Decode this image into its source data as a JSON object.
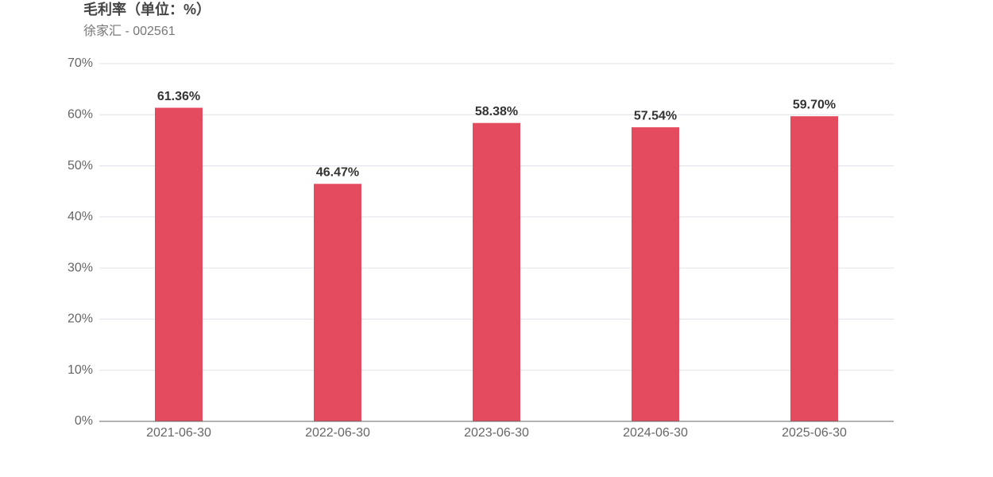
{
  "chart_data": {
    "type": "bar",
    "title": "毛利率（单位：%）",
    "subtitle": "徐家汇 - 002561",
    "categories": [
      "2021-06-30",
      "2022-06-30",
      "2023-06-30",
      "2024-06-30",
      "2025-06-30"
    ],
    "values": [
      61.36,
      46.47,
      58.38,
      57.54,
      59.7
    ],
    "value_labels": [
      "61.36%",
      "46.47%",
      "58.38%",
      "57.54%",
      "59.70%"
    ],
    "color": "#e54b5e",
    "ylim": [
      0,
      70
    ],
    "yticks": [
      {
        "value": 0,
        "label": "0%"
      },
      {
        "value": 10,
        "label": "10%"
      },
      {
        "value": 20,
        "label": "20%"
      },
      {
        "value": 30,
        "label": "30%"
      },
      {
        "value": 40,
        "label": "40%"
      },
      {
        "value": 50,
        "label": "50%"
      },
      {
        "value": 60,
        "label": "60%"
      },
      {
        "value": 70,
        "label": "70%"
      }
    ],
    "grid": true
  }
}
